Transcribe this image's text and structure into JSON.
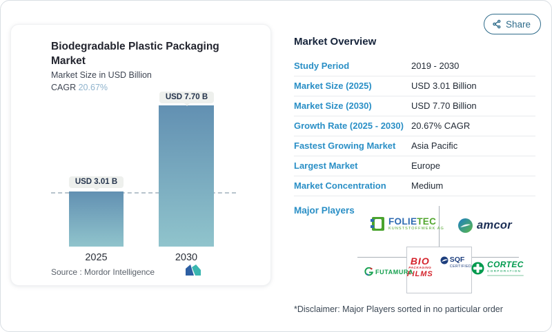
{
  "share": {
    "label": "Share"
  },
  "chart_card": {
    "title": "Biodegradable Plastic Packaging Market",
    "subtitle": "Market Size in USD Billion",
    "cagr_label": "CAGR",
    "cagr_value": "20.67%",
    "source_label": "Source :",
    "source_value": "Mordor Intelligence"
  },
  "chart_data": {
    "type": "bar",
    "title": "Biodegradable Plastic Packaging Market",
    "ylabel": "Market Size in USD Billion",
    "categories": [
      "2025",
      "2030"
    ],
    "values": [
      3.01,
      7.7
    ],
    "value_labels": [
      "USD 3.01 B",
      "USD 7.70 B"
    ],
    "cagr": "20.67%",
    "reference_line": 3.01,
    "ylim": [
      0,
      7.8
    ],
    "grid": false,
    "legend": "none",
    "bar_colors": [
      "#6290b2",
      "#90c4cc"
    ]
  },
  "overview": {
    "heading": "Market Overview",
    "rows": [
      {
        "label": "Study Period",
        "value": "2019 - 2030"
      },
      {
        "label": "Market Size (2025)",
        "value": "USD 3.01 Billion"
      },
      {
        "label": "Market Size (2030)",
        "value": "USD 7.70 Billion"
      },
      {
        "label": "Growth Rate (2025 - 2030)",
        "value": "20.67% CAGR"
      },
      {
        "label": "Fastest Growing Market",
        "value": "Asia Pacific"
      },
      {
        "label": "Largest Market",
        "value": "Europe"
      },
      {
        "label": "Market Concentration",
        "value": "Medium"
      }
    ],
    "major_players_label": "Major Players",
    "disclaimer": "*Disclaimer: Major Players sorted in no particular order",
    "players": {
      "folietec": {
        "name1": "FOLIE",
        "name2": "TEC",
        "sub": "KUNSTSTOFFWERK AG"
      },
      "amcor": {
        "name": "amcor"
      },
      "bio": {
        "line1": "BIO",
        "line2": "PACKAGING",
        "line3": "FILMS"
      },
      "sqf": {
        "name": "SQF",
        "sub": "CERTIFIED"
      },
      "futamura": {
        "name": "FUTAMURA"
      },
      "cortec": {
        "name": "CORTEC",
        "sub": "CORPORATION"
      }
    }
  },
  "colors": {
    "accent_blue": "#2a8fc6",
    "heading_navy": "#15233a",
    "value_dark": "#222a35",
    "share_teal": "#2e6b8a",
    "cagr_blue": "#8fb3cd",
    "bar_top": "#6290b2",
    "bar_bottom": "#90c4cc",
    "tag_bg": "#eef0ed",
    "tag_text": "#24334c",
    "row_border": "#e8eaed",
    "line_gray": "#a9b0b7",
    "logo_green": "#52a62e",
    "logo_blue": "#2e6bb2",
    "logo_red": "#d4232b",
    "sqf_navy": "#1d3e7d",
    "cortec_green": "#019a4e",
    "futamura_green": "#16a04f",
    "amcor_navy": "#1c2f55"
  }
}
